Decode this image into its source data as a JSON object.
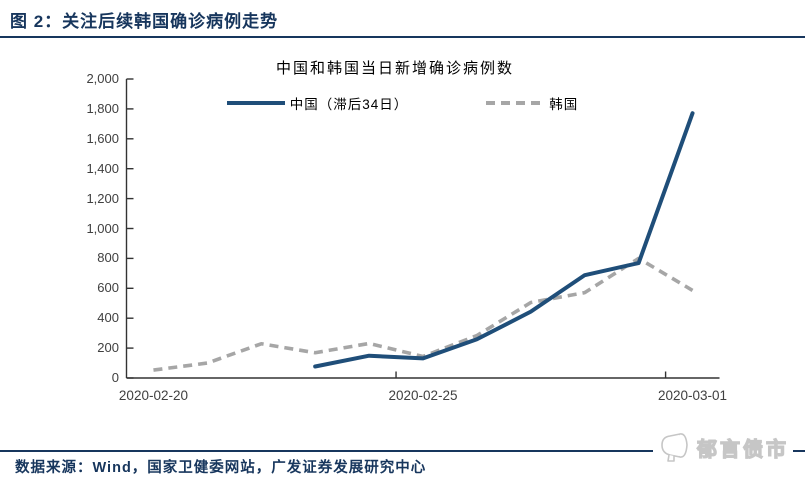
{
  "header": {
    "title": "图 2：关注后续韩国确诊病例走势"
  },
  "chart": {
    "title": "中国和韩国当日新增确诊病例数",
    "legend": [
      {
        "label": "中国（滞后34日）",
        "color": "#1F4E79",
        "style": "solid"
      },
      {
        "label": "韩国",
        "color": "#A6A6A6",
        "style": "dashed"
      }
    ]
  },
  "chart_data": {
    "type": "line",
    "title": "中国和韩国当日新增确诊病例数",
    "x": [
      "2020-02-20",
      "2020-02-21",
      "2020-02-22",
      "2020-02-23",
      "2020-02-24",
      "2020-02-25",
      "2020-02-26",
      "2020-02-27",
      "2020-02-28",
      "2020-02-29",
      "2020-03-01"
    ],
    "series": [
      {
        "name": "韩国",
        "color": "#A6A6A6",
        "dash": true,
        "values": [
          53,
          100,
          229,
          169,
          231,
          144,
          284,
          505,
          571,
          800,
          586
        ]
      },
      {
        "name": "中国（滞后34日）",
        "color": "#1F4E79",
        "dash": false,
        "values": [
          null,
          null,
          null,
          77,
          149,
          131,
          259,
          444,
          688,
          769,
          1771
        ]
      }
    ],
    "ylim": [
      0,
      2000
    ],
    "y_tick_step": 200,
    "y_ticks": [
      "2,000",
      "1,800",
      "1,600",
      "1,400",
      "1,200",
      "1,000",
      "800",
      "600",
      "400",
      "200",
      "0"
    ],
    "x_tick_labels": [
      "2020-02-20",
      "2020-02-25",
      "2020-03-01"
    ],
    "x_label_slots": [
      0,
      5,
      10
    ],
    "legend_position": "top",
    "grid": false,
    "axis_color": "#333333"
  },
  "footer": {
    "source": "数据来源：Wind，国家卫健委网站，广发证券发展研究中心",
    "logo_text": "郁言债市"
  }
}
